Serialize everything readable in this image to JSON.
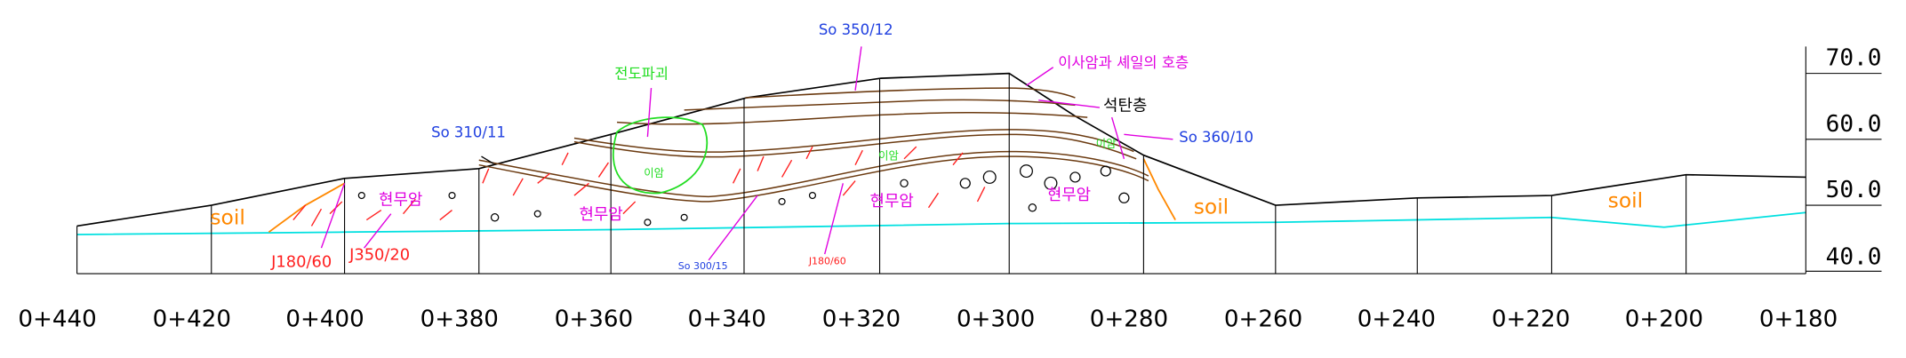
{
  "stations": [
    "0+440",
    "0+420",
    "0+400",
    "0+380",
    "0+360",
    "0+340",
    "0+320",
    "0+300",
    "0+280",
    "0+260",
    "0+240",
    "0+220",
    "0+200",
    "0+180"
  ],
  "elevations": [
    "70.0",
    "60.0",
    "50.0",
    "40.0"
  ],
  "annotations": {
    "so_350_12": "So 350/12",
    "interbed": "이사암과 셰일의 호층",
    "toppling": "전도파괴",
    "coal": "석탄층",
    "so_310_11": "So 310/11",
    "so_360_10": "So 360/10",
    "mudstone": [
      "이암",
      "이암",
      "이암"
    ],
    "basalt": [
      "현무암",
      "현무암",
      "현무암",
      "현무암"
    ],
    "soil": [
      "soil",
      "soil",
      "soil"
    ],
    "j_180_60": "J180/60",
    "j_350_20": "J350/20",
    "so_300_15": "So 300/15",
    "j_180_60_small": "J180/60"
  }
}
